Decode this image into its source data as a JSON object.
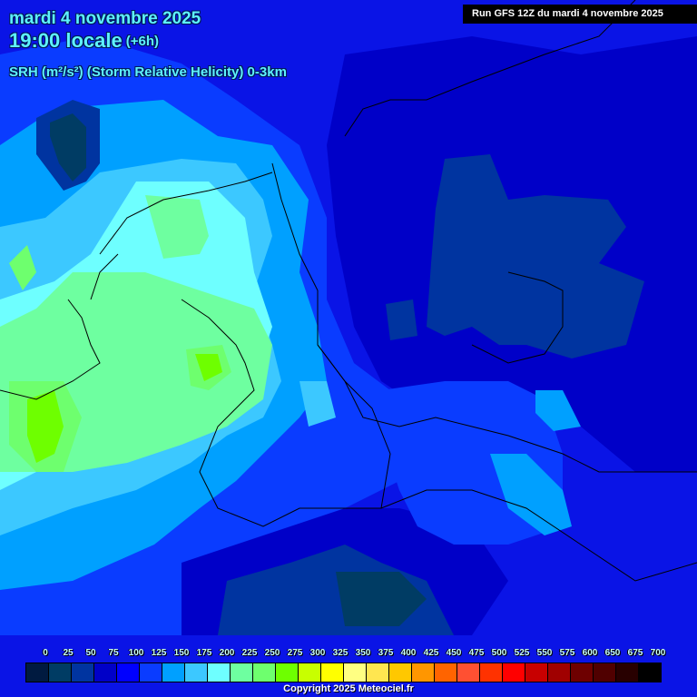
{
  "header": {
    "date": "mardi 4 novembre 2025",
    "time": "19:00 locale",
    "offset": "(+6h)",
    "parameter": "SRH (m²/s²) (Storm Relative Helicity) 0-3km"
  },
  "run_info": "Run GFS 12Z du mardi 4 novembre 2025",
  "copyright": "Copyright 2025 Meteociel.fr",
  "legend": {
    "labels": [
      "0",
      "25",
      "50",
      "75",
      "100",
      "125",
      "150",
      "175",
      "200",
      "225",
      "250",
      "275",
      "300",
      "325",
      "350",
      "375",
      "400",
      "425",
      "450",
      "475",
      "500",
      "525",
      "550",
      "575",
      "600",
      "650",
      "675",
      "700"
    ],
    "colors": [
      "#001a40",
      "#003c64",
      "#0034a0",
      "#0000c8",
      "#0000ff",
      "#0a3cff",
      "#00a0ff",
      "#3cc8ff",
      "#6effff",
      "#6effa0",
      "#6eff6e",
      "#6eff00",
      "#c8ff00",
      "#ffff00",
      "#ffff82",
      "#ffe650",
      "#ffc800",
      "#ff9600",
      "#ff6400",
      "#ff5032",
      "#ff3200",
      "#ff0000",
      "#c80000",
      "#a00000",
      "#6e0000",
      "#500000",
      "#280000",
      "#000000"
    ]
  },
  "map": {
    "region": "Central Europe (Benelux, Germany, Poland, Czechia, Austria, Switzerland)",
    "background_color": "#0a14e6",
    "features": [
      {
        "name": "min-north-sea",
        "color": "#003c64"
      },
      {
        "name": "max-belgium-france",
        "color": "#6eff00"
      },
      {
        "name": "max-netherlands-east",
        "color": "#6eff00"
      },
      {
        "name": "low-poland",
        "color": "#0034a0"
      },
      {
        "name": "low-alps",
        "color": "#003c64"
      }
    ]
  }
}
